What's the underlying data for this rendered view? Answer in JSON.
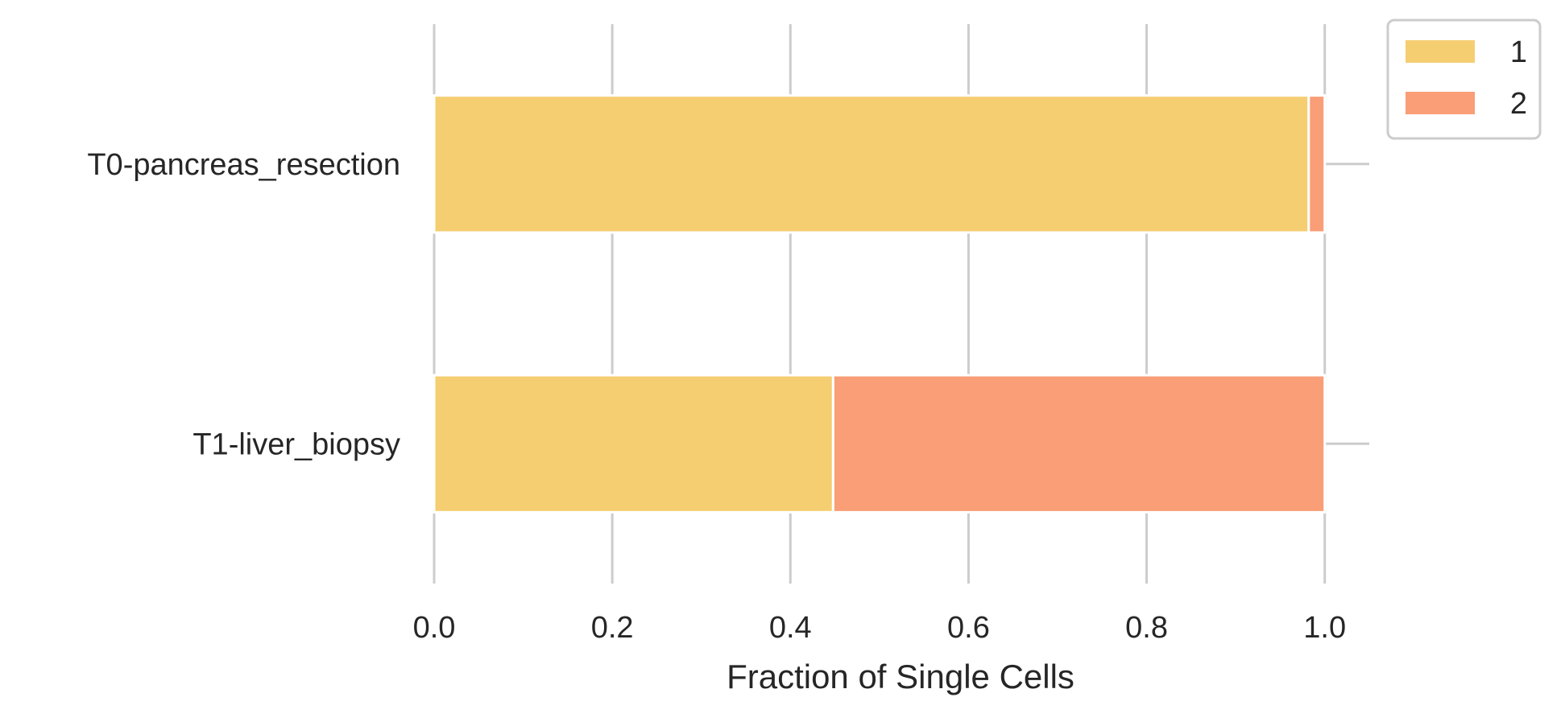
{
  "chart_data": {
    "type": "bar",
    "orientation": "horizontal",
    "stacked": true,
    "title": "",
    "xlabel": "Fraction of Single Cells",
    "ylabel": "",
    "xlim": [
      0,
      1.05
    ],
    "xticks": [
      "0.0",
      "0.2",
      "0.4",
      "0.6",
      "0.8",
      "1.0"
    ],
    "grid": "x",
    "legend_position": "outside-top-right",
    "categories": [
      "T0-pancreas_resection",
      "T1-liver_biopsy"
    ],
    "series": [
      {
        "name": "1",
        "color": "#F5CE72",
        "values": [
          0.982,
          0.448
        ]
      },
      {
        "name": "2",
        "color": "#F99E76",
        "values": [
          0.018,
          0.552
        ]
      }
    ]
  }
}
